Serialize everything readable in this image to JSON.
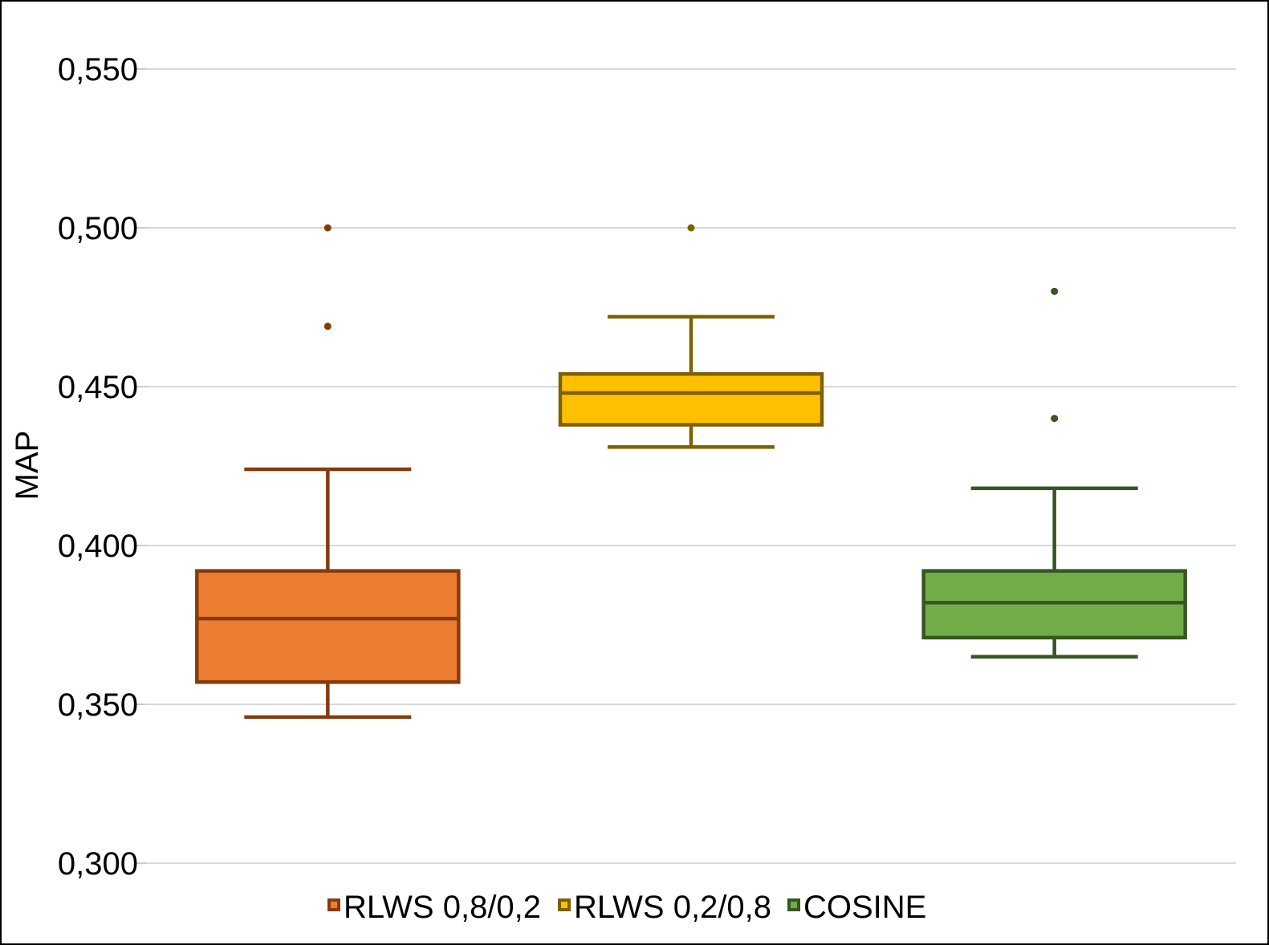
{
  "chart_data": {
    "type": "boxplot",
    "ylabel": "MAP",
    "ylim": [
      0.3,
      0.55
    ],
    "yticks": [
      0.3,
      0.35,
      0.4,
      0.45,
      0.5,
      0.55
    ],
    "ytick_labels": [
      "0,300",
      "0,350",
      "0,400",
      "0,450",
      "0,500",
      "0,550"
    ],
    "grid": true,
    "legend_position": "bottom",
    "series": [
      {
        "name": "RLWS 0,8/0,2",
        "fill": "#ED7D31",
        "stroke": "#843C0C",
        "min": 0.346,
        "q1": 0.357,
        "median": 0.377,
        "q3": 0.392,
        "max": 0.424,
        "outliers": [
          0.469,
          0.5
        ]
      },
      {
        "name": "RLWS 0,2/0,8",
        "fill": "#FFC000",
        "stroke": "#7F6000",
        "min": 0.431,
        "q1": 0.438,
        "median": 0.448,
        "q3": 0.454,
        "max": 0.472,
        "outliers": [
          0.5
        ]
      },
      {
        "name": "COSINE",
        "fill": "#70AD47",
        "stroke": "#375623",
        "min": 0.365,
        "q1": 0.371,
        "median": 0.382,
        "q3": 0.392,
        "max": 0.418,
        "outliers": [
          0.44,
          0.48
        ]
      }
    ]
  }
}
